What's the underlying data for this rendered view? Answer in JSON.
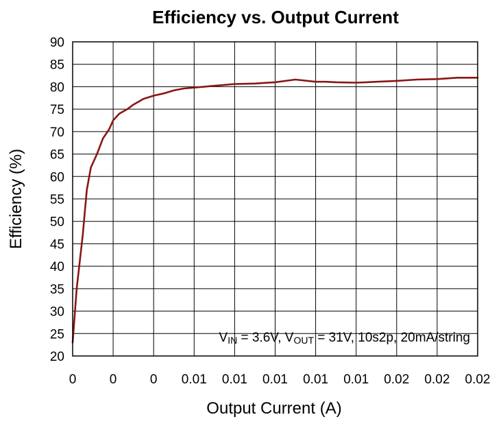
{
  "chart_data": {
    "type": "line",
    "title": "Efficiency vs. Output Current",
    "xlabel": "Output Current (A)",
    "ylabel": "Efficiency (%)",
    "xlim": [
      0,
      0.02
    ],
    "ylim": [
      20,
      90
    ],
    "x_tick_labels": [
      "0",
      "0",
      "0",
      "0.01",
      "0.01",
      "0.01",
      "0.01",
      "0.01",
      "0.02",
      "0.02",
      "0.02"
    ],
    "y_ticks": [
      20,
      25,
      30,
      35,
      40,
      45,
      50,
      55,
      60,
      65,
      70,
      75,
      80,
      85,
      90
    ],
    "grid": true,
    "line_color": "#8b1414",
    "annotation": {
      "vin_label": "V",
      "vin_sub": "IN",
      "vin_rest": " = 3.6V, ",
      "vout_label": "V",
      "vout_sub": "OUT",
      "vout_rest": " = 31V, 10s2p, 20mA/string"
    },
    "series": [
      {
        "x": [
          0.0,
          0.0002,
          0.0005,
          0.0006,
          0.0007,
          0.0009,
          0.0012,
          0.0015,
          0.0018,
          0.002,
          0.0023,
          0.0027,
          0.003,
          0.0035,
          0.004,
          0.0045,
          0.005,
          0.0055,
          0.006,
          0.0065,
          0.007,
          0.008,
          0.009,
          0.01,
          0.011,
          0.0118,
          0.012,
          0.0125,
          0.013,
          0.014,
          0.0145,
          0.015,
          0.016,
          0.017,
          0.018,
          0.019,
          0.02
        ],
        "y": [
          23,
          35,
          47,
          52,
          57,
          62,
          65,
          68.5,
          70.5,
          72.5,
          74,
          75,
          76,
          77.3,
          78,
          78.5,
          79.2,
          79.6,
          79.8,
          80,
          80.2,
          80.6,
          80.7,
          81,
          81.6,
          81.2,
          81.1,
          81.1,
          81,
          80.9,
          81,
          81.1,
          81.3,
          81.6,
          81.7,
          82,
          82
        ]
      }
    ]
  }
}
